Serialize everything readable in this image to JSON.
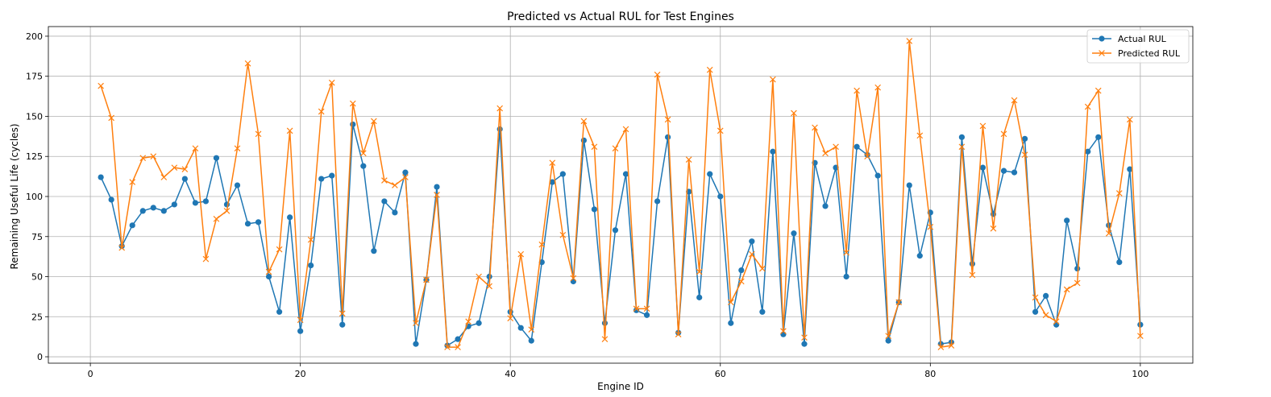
{
  "chart_data": {
    "type": "line",
    "title": "Predicted vs Actual RUL for Test Engines",
    "xlabel": "Engine ID",
    "ylabel": "Remaining Useful Life (cycles)",
    "xlim": [
      -4,
      105
    ],
    "ylim": [
      -4,
      206
    ],
    "xticks": [
      0,
      20,
      40,
      60,
      80,
      100
    ],
    "yticks": [
      0,
      25,
      50,
      75,
      100,
      125,
      150,
      175,
      200
    ],
    "grid": true,
    "legend_position": "top-right",
    "x": [
      1,
      2,
      3,
      4,
      5,
      6,
      7,
      8,
      9,
      10,
      11,
      12,
      13,
      14,
      15,
      16,
      17,
      18,
      19,
      20,
      21,
      22,
      23,
      24,
      25,
      26,
      27,
      28,
      29,
      30,
      31,
      32,
      33,
      34,
      35,
      36,
      37,
      38,
      39,
      40,
      41,
      42,
      43,
      44,
      45,
      46,
      47,
      48,
      49,
      50,
      51,
      52,
      53,
      54,
      55,
      56,
      57,
      58,
      59,
      60,
      61,
      62,
      63,
      64,
      65,
      66,
      67,
      68,
      69,
      70,
      71,
      72,
      73,
      74,
      75,
      76,
      77,
      78,
      79,
      80,
      81,
      82,
      83,
      84,
      85,
      86,
      87,
      88,
      89,
      90,
      91,
      92,
      93,
      94,
      95,
      96,
      97,
      98,
      99,
      100
    ],
    "series": [
      {
        "name": "Actual RUL",
        "color": "#1f77b4",
        "marker": "circle",
        "values": [
          112,
          98,
          69,
          82,
          91,
          93,
          91,
          95,
          111,
          96,
          97,
          124,
          95,
          107,
          83,
          84,
          50,
          28,
          87,
          16,
          57,
          111,
          113,
          20,
          145,
          119,
          66,
          97,
          90,
          115,
          8,
          48,
          106,
          7,
          11,
          19,
          21,
          50,
          142,
          28,
          18,
          10,
          59,
          109,
          114,
          47,
          135,
          92,
          21,
          79,
          114,
          29,
          26,
          97,
          137,
          15,
          103,
          37,
          114,
          100,
          21,
          54,
          72,
          28,
          128,
          14,
          77,
          8,
          121,
          94,
          118,
          50,
          131,
          126,
          113,
          10,
          34,
          107,
          63,
          90,
          8,
          9,
          137,
          58,
          118,
          89,
          116,
          115,
          136,
          28,
          38,
          20,
          85,
          55,
          128,
          137,
          82,
          59,
          117,
          20
        ]
      },
      {
        "name": "Predicted RUL",
        "color": "#ff7f0e",
        "marker": "x",
        "values": [
          169,
          149,
          68,
          109,
          124,
          125,
          112,
          118,
          117,
          130,
          61,
          86,
          91,
          130,
          183,
          139,
          53,
          67,
          141,
          23,
          73,
          153,
          171,
          27,
          158,
          127,
          147,
          110,
          107,
          112,
          21,
          48,
          101,
          6,
          6,
          22,
          50,
          44,
          155,
          24,
          64,
          17,
          70,
          121,
          76,
          49,
          147,
          131,
          11,
          130,
          142,
          30,
          30,
          176,
          148,
          14,
          123,
          53,
          179,
          141,
          34,
          47,
          64,
          55,
          173,
          16,
          152,
          12,
          143,
          127,
          131,
          65,
          166,
          125,
          168,
          13,
          34,
          197,
          138,
          81,
          6,
          7,
          131,
          51,
          144,
          80,
          139,
          160,
          126,
          37,
          26,
          22,
          42,
          46,
          156,
          166,
          77,
          102,
          148,
          13
        ]
      }
    ]
  }
}
